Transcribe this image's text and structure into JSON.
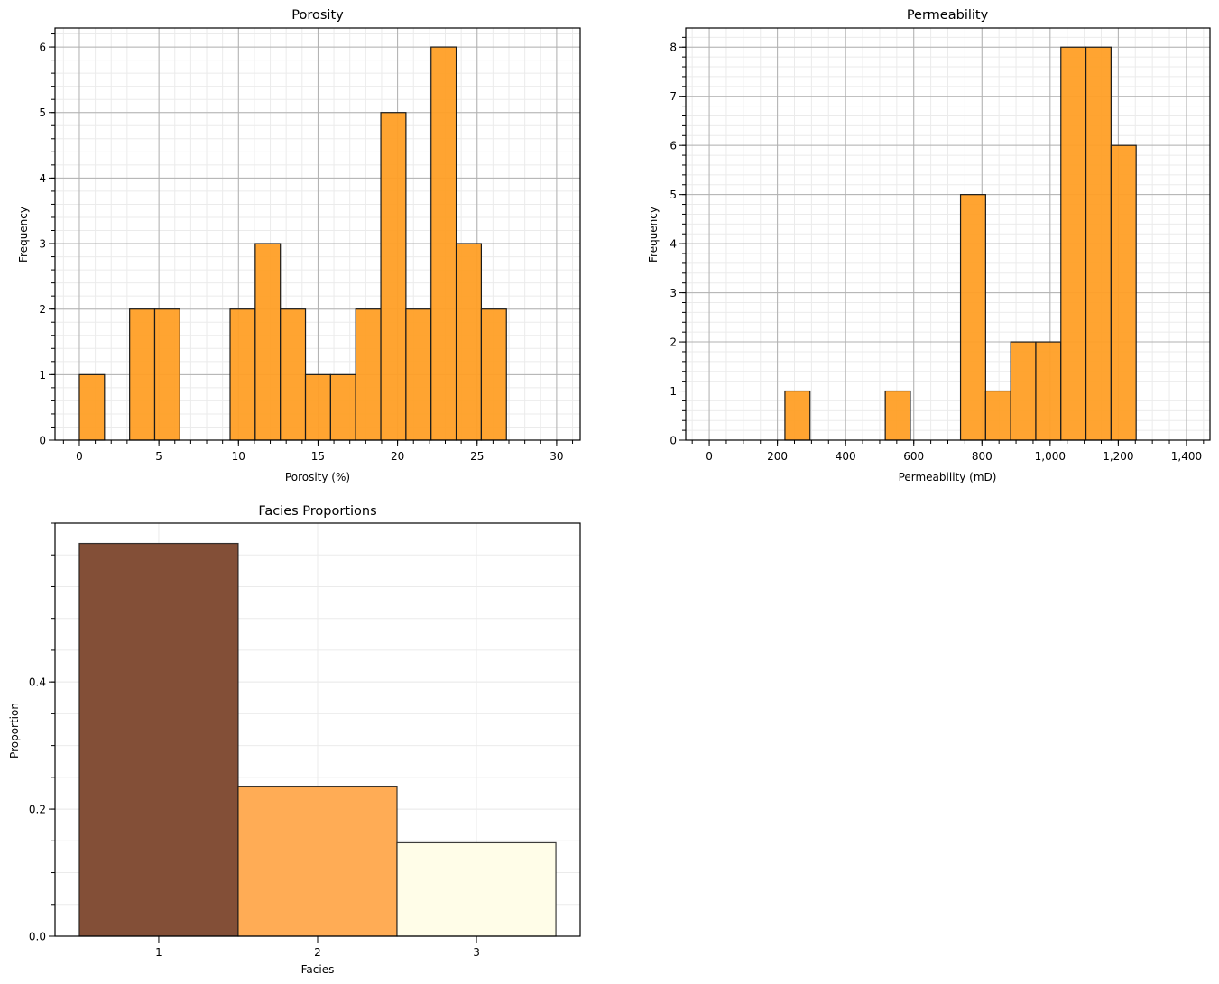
{
  "chart_data": [
    {
      "id": "porosity",
      "type": "bar",
      "histogram": true,
      "title": "Porosity",
      "xlabel": "Porosity (%)",
      "ylabel": "Frequency",
      "bin_start": 0,
      "bin_width": 1.579,
      "values": [
        1,
        0,
        2,
        2,
        0,
        0,
        2,
        3,
        2,
        1,
        1,
        2,
        5,
        2,
        6,
        3,
        2
      ],
      "xlim": [
        -1.53,
        31.48
      ],
      "ylim": [
        0,
        6.29
      ],
      "xticks": [
        0,
        5,
        10,
        15,
        20,
        25,
        30
      ],
      "xtick_labels": [
        "0",
        "5",
        "10",
        "15",
        "20",
        "25",
        "30"
      ],
      "yticks": [
        0,
        1,
        2,
        3,
        4,
        5,
        6
      ],
      "ytick_labels": [
        "0",
        "1",
        "2",
        "3",
        "4",
        "5",
        "6"
      ],
      "x_minor_step": 1,
      "y_minor_step": 0.2,
      "grid": true,
      "bar_color": "#ff9f26",
      "edge_color": "#1a1a1a"
    },
    {
      "id": "permeability",
      "type": "bar",
      "histogram": true,
      "title": "Permeability",
      "xlabel": "Permeability (mD)",
      "ylabel": "Frequency",
      "bin_start": 222,
      "bin_width": 73.6,
      "values": [
        1,
        0,
        0,
        0,
        1,
        0,
        0,
        5,
        1,
        2,
        2,
        8,
        8,
        6
      ],
      "xlim": [
        -69,
        1469
      ],
      "ylim": [
        0,
        8.39
      ],
      "xticks": [
        0,
        200,
        400,
        600,
        800,
        1000,
        1200,
        1400
      ],
      "xtick_labels": [
        "0",
        "200",
        "400",
        "600",
        "800",
        "1,000",
        "1,200",
        "1,400"
      ],
      "yticks": [
        0,
        1,
        2,
        3,
        4,
        5,
        6,
        7,
        8
      ],
      "ytick_labels": [
        "0",
        "1",
        "2",
        "3",
        "4",
        "5",
        "6",
        "7",
        "8"
      ],
      "x_minor_step": 50,
      "y_minor_step": 0.2,
      "grid": true,
      "bar_color": "#ff9f26",
      "edge_color": "#1a1a1a"
    },
    {
      "id": "facies",
      "type": "bar",
      "histogram": false,
      "title": "Facies Proportions",
      "xlabel": "Facies",
      "ylabel": "Proportion",
      "categories": [
        "1",
        "2",
        "3"
      ],
      "x": [
        1,
        2,
        3
      ],
      "values": [
        0.618,
        0.235,
        0.147
      ],
      "colors": [
        "#834f37",
        "#ffac55",
        "#fffde8"
      ],
      "xlim": [
        0.347,
        3.653
      ],
      "ylim": [
        0,
        0.65
      ],
      "xticks": [
        1,
        2,
        3
      ],
      "xtick_labels": [
        "1",
        "2",
        "3"
      ],
      "yticks": [
        0,
        0.2,
        0.4
      ],
      "ytick_labels": [
        "0.0",
        "0.2",
        "0.4"
      ],
      "y_minor_step": 0.05,
      "grid": true,
      "edge_color": "#1a1a1a"
    }
  ]
}
